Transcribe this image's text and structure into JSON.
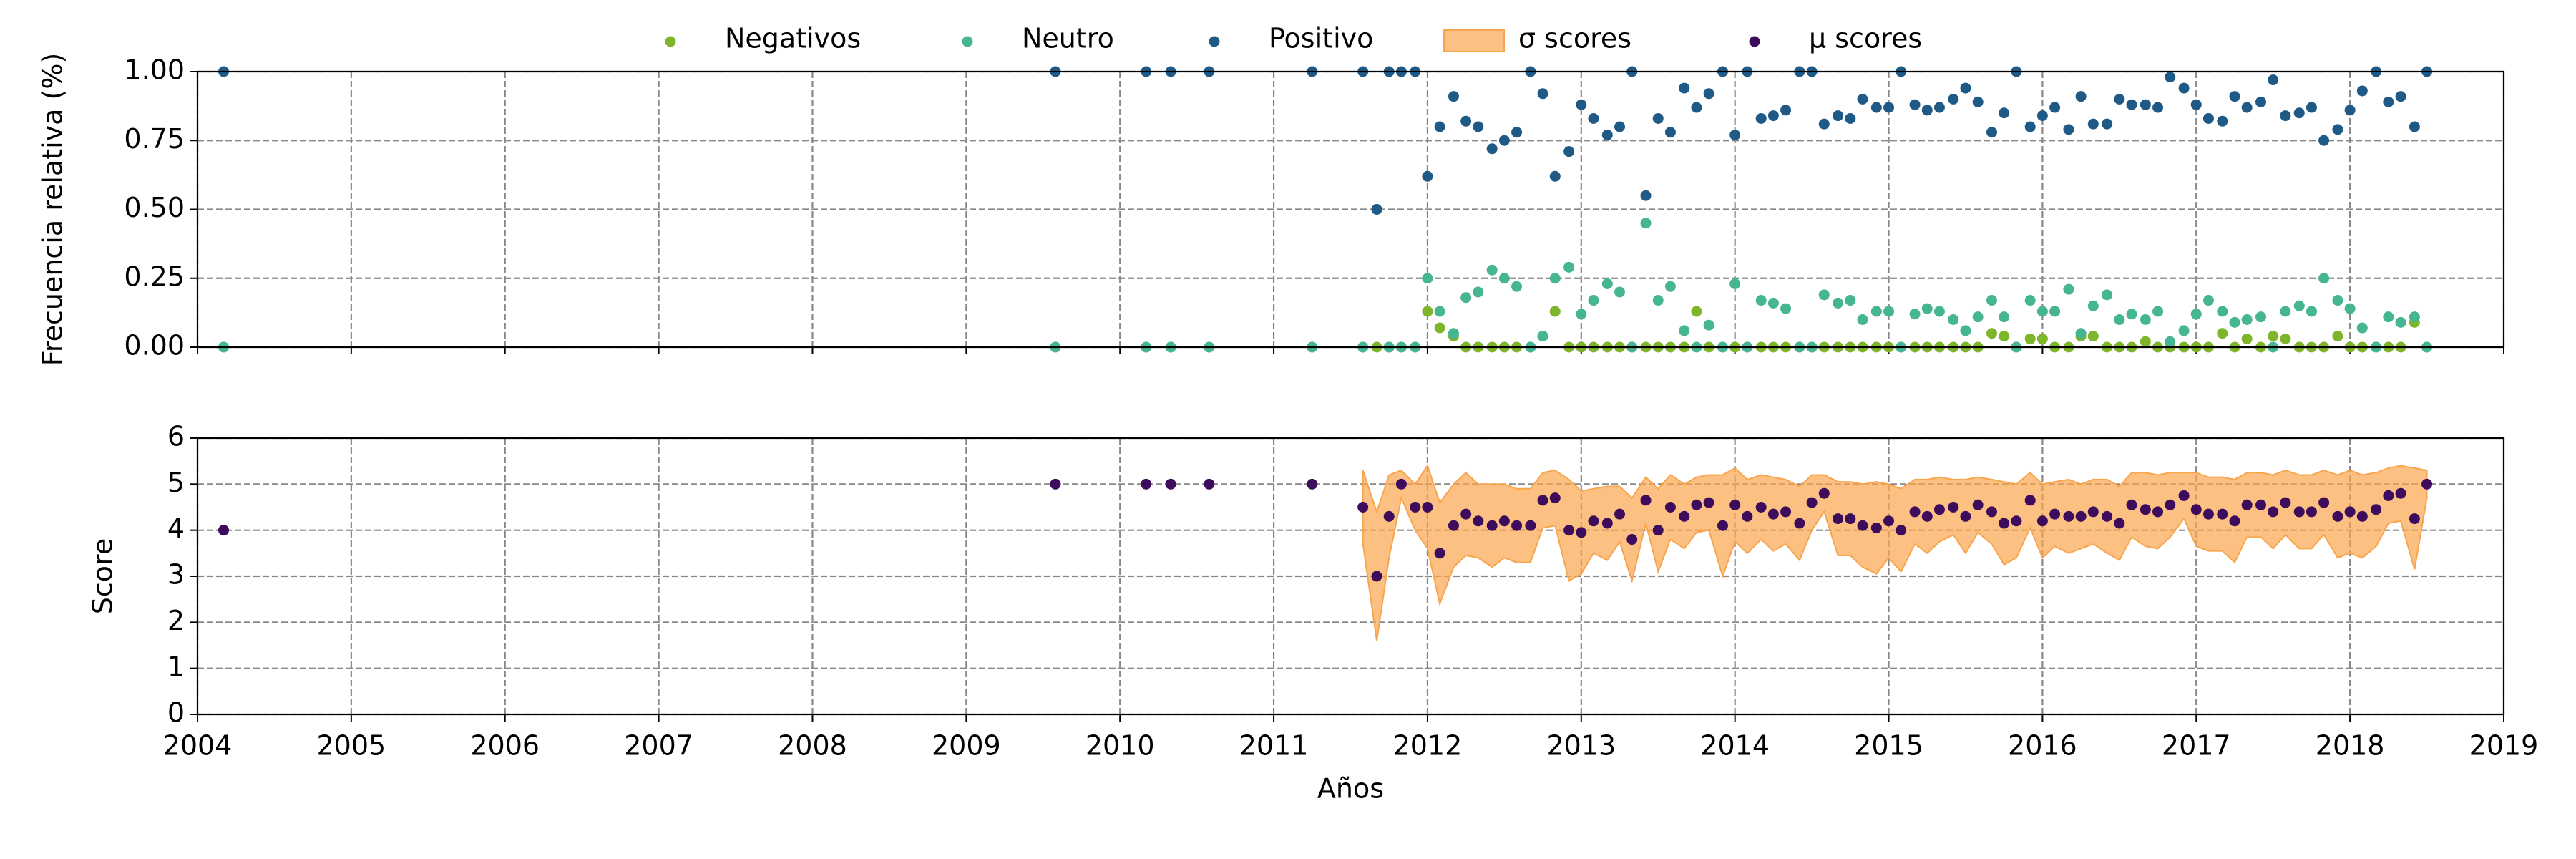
{
  "chart_data": [
    {
      "type": "scatter",
      "ylabel": "Frecuencia relativa (%)",
      "x": [
        2004.17,
        2009.58,
        2010.17,
        2010.33,
        2010.58,
        2011.25,
        2011.58,
        2011.67,
        2011.75,
        2011.83,
        2011.92,
        2012.0,
        2012.08,
        2012.17,
        2012.25,
        2012.33,
        2012.42,
        2012.5,
        2012.58,
        2012.67,
        2012.75,
        2012.83,
        2012.92,
        2013.0,
        2013.08,
        2013.17,
        2013.25,
        2013.33,
        2013.42,
        2013.5,
        2013.58,
        2013.67,
        2013.75,
        2013.83,
        2013.92,
        2014.0,
        2014.08,
        2014.17,
        2014.25,
        2014.33,
        2014.42,
        2014.5,
        2014.58,
        2014.67,
        2014.75,
        2014.83,
        2014.92,
        2015.0,
        2015.08,
        2015.17,
        2015.25,
        2015.33,
        2015.42,
        2015.5,
        2015.58,
        2015.67,
        2015.75,
        2015.83,
        2015.92,
        2016.0,
        2016.08,
        2016.17,
        2016.25,
        2016.33,
        2016.42,
        2016.5,
        2016.58,
        2016.67,
        2016.75,
        2016.83,
        2016.92,
        2017.0,
        2017.08,
        2017.17,
        2017.25,
        2017.33,
        2017.42,
        2017.5,
        2017.58,
        2017.67,
        2017.75,
        2017.83,
        2017.92,
        2018.0,
        2018.08,
        2018.17,
        2018.25,
        2018.33,
        2018.42,
        2018.5
      ],
      "series": [
        {
          "name": "Negativos",
          "color": "#7fb52a",
          "values": [
            0,
            0,
            0,
            0,
            0,
            0,
            0,
            0,
            0,
            0,
            0,
            0.13,
            0.07,
            0.04,
            0,
            0,
            0,
            0,
            0,
            0,
            0.04,
            0.13,
            0,
            0,
            0,
            0,
            0,
            0,
            0,
            0,
            0,
            0,
            0.13,
            0,
            0,
            0,
            0,
            0,
            0,
            0,
            0,
            0,
            0,
            0,
            0,
            0,
            0,
            0,
            0,
            0,
            0,
            0,
            0,
            0,
            0,
            0.05,
            0.04,
            0,
            0.03,
            0.03,
            0,
            0,
            0.04,
            0.04,
            0,
            0,
            0,
            0.02,
            0,
            0,
            0,
            0,
            0,
            0.05,
            0,
            0.03,
            0,
            0.04,
            0.03,
            0,
            0,
            0,
            0.04,
            0,
            0,
            0,
            0,
            0,
            0.09,
            0
          ]
        },
        {
          "name": "Neutro",
          "color": "#45b592",
          "values": [
            0,
            0,
            0,
            0,
            0,
            0,
            0,
            0.5,
            0,
            0,
            0,
            0.25,
            0.13,
            0.05,
            0.18,
            0.2,
            0.28,
            0.25,
            0.22,
            0,
            0.04,
            0.25,
            0.29,
            0.12,
            0.17,
            0.23,
            0.2,
            0,
            0.45,
            0.17,
            0.22,
            0.06,
            0,
            0.08,
            0,
            0.23,
            0,
            0.17,
            0.16,
            0.14,
            0,
            0,
            0.19,
            0.16,
            0.17,
            0.1,
            0.13,
            0.13,
            0,
            0.12,
            0.14,
            0.13,
            0.1,
            0.06,
            0.11,
            0.17,
            0.11,
            0,
            0.17,
            0.13,
            0.13,
            0.21,
            0.05,
            0.15,
            0.19,
            0.1,
            0.12,
            0.1,
            0.13,
            0.02,
            0.06,
            0.12,
            0.17,
            0.13,
            0.09,
            0.1,
            0.11,
            0,
            0.13,
            0.15,
            0.13,
            0.25,
            0.17,
            0.14,
            0.07,
            0,
            0.11,
            0.09,
            0.11,
            0
          ]
        },
        {
          "name": "Positivo",
          "color": "#1f5a87",
          "values": [
            1,
            1,
            1,
            1,
            1,
            1,
            1,
            0.5,
            1,
            1,
            1,
            0.62,
            0.8,
            0.91,
            0.82,
            0.8,
            0.72,
            0.75,
            0.78,
            1,
            0.92,
            0.62,
            0.71,
            0.88,
            0.83,
            0.77,
            0.8,
            1,
            0.55,
            0.83,
            0.78,
            0.94,
            0.87,
            0.92,
            1,
            0.77,
            1,
            0.83,
            0.84,
            0.86,
            1,
            1,
            0.81,
            0.84,
            0.83,
            0.9,
            0.87,
            0.87,
            1,
            0.88,
            0.86,
            0.87,
            0.9,
            0.94,
            0.89,
            0.78,
            0.85,
            1,
            0.8,
            0.84,
            0.87,
            0.79,
            0.91,
            0.81,
            0.81,
            0.9,
            0.88,
            0.88,
            0.87,
            0.98,
            0.94,
            0.88,
            0.83,
            0.82,
            0.91,
            0.87,
            0.89,
            0.97,
            0.84,
            0.85,
            0.87,
            0.75,
            0.79,
            0.86,
            0.93,
            1,
            0.89,
            0.91,
            0.8,
            1
          ]
        }
      ],
      "xlim": [
        2004,
        2019
      ],
      "xticks": [
        2004,
        2005,
        2006,
        2007,
        2008,
        2009,
        2010,
        2011,
        2012,
        2013,
        2014,
        2015,
        2016,
        2017,
        2018,
        2019
      ],
      "ylim": [
        0,
        1
      ],
      "yticks": [
        {
          "value": 0,
          "label": "0.00"
        },
        {
          "value": 0.25,
          "label": "0.25"
        },
        {
          "value": 0.5,
          "label": "0.50"
        },
        {
          "value": 0.75,
          "label": "0.75"
        },
        {
          "value": 1,
          "label": "1.00"
        }
      ],
      "grid": true,
      "legend": "upper center"
    },
    {
      "type": "scatter",
      "xlabel": "Años",
      "ylabel": "Score",
      "x": [
        2004.17,
        2009.58,
        2010.17,
        2010.33,
        2010.58,
        2011.25,
        2011.58,
        2011.67,
        2011.75,
        2011.83,
        2011.92,
        2012.0,
        2012.08,
        2012.17,
        2012.25,
        2012.33,
        2012.42,
        2012.5,
        2012.58,
        2012.67,
        2012.75,
        2012.83,
        2012.92,
        2013.0,
        2013.08,
        2013.17,
        2013.25,
        2013.33,
        2013.42,
        2013.5,
        2013.58,
        2013.67,
        2013.75,
        2013.83,
        2013.92,
        2014.0,
        2014.08,
        2014.17,
        2014.25,
        2014.33,
        2014.42,
        2014.5,
        2014.58,
        2014.67,
        2014.75,
        2014.83,
        2014.92,
        2015.0,
        2015.08,
        2015.17,
        2015.25,
        2015.33,
        2015.42,
        2015.5,
        2015.58,
        2015.67,
        2015.75,
        2015.83,
        2015.92,
        2016.0,
        2016.08,
        2016.17,
        2016.25,
        2016.33,
        2016.42,
        2016.5,
        2016.58,
        2016.67,
        2016.75,
        2016.83,
        2016.92,
        2017.0,
        2017.08,
        2017.17,
        2017.25,
        2017.33,
        2017.42,
        2017.5,
        2017.58,
        2017.67,
        2017.75,
        2017.83,
        2017.92,
        2018.0,
        2018.08,
        2018.17,
        2018.25,
        2018.33,
        2018.42,
        2018.5
      ],
      "series": [
        {
          "name": "σ scores",
          "color": "#f9a54d",
          "style": "band",
          "values": [
            null,
            null,
            null,
            null,
            null,
            null,
            0.8,
            1.4,
            0.9,
            0.3,
            0.5,
            0.9,
            1.1,
            0.9,
            0.9,
            0.8,
            0.9,
            0.8,
            0.8,
            0.8,
            0.6,
            0.6,
            1.1,
            0.9,
            0.7,
            0.8,
            0.6,
            0.9,
            0.5,
            0.9,
            0.7,
            0.7,
            0.6,
            0.6,
            1.1,
            0.8,
            0.8,
            0.7,
            0.8,
            0.7,
            0.8,
            0.6,
            0.4,
            0.8,
            0.8,
            0.9,
            1.0,
            0.8,
            0.9,
            0.7,
            0.8,
            0.7,
            0.6,
            0.8,
            0.6,
            0.7,
            0.9,
            0.8,
            0.6,
            0.8,
            0.7,
            0.8,
            0.7,
            0.7,
            0.8,
            0.8,
            0.7,
            0.8,
            0.8,
            0.7,
            0.5,
            0.8,
            0.8,
            0.8,
            0.9,
            0.7,
            0.7,
            0.8,
            0.7,
            0.8,
            0.8,
            0.7,
            0.9,
            0.9,
            0.9,
            0.8,
            0.6,
            0.6,
            1.1,
            0.3
          ]
        },
        {
          "name": "μ scores",
          "color": "#3d0c5c",
          "values": [
            4,
            5,
            5,
            5,
            5,
            5,
            4.5,
            3.0,
            4.3,
            5.0,
            4.5,
            4.5,
            3.5,
            4.1,
            4.35,
            4.2,
            4.1,
            4.2,
            4.1,
            4.1,
            4.65,
            4.7,
            4.0,
            3.95,
            4.2,
            4.15,
            4.35,
            3.8,
            4.65,
            4.0,
            4.5,
            4.3,
            4.55,
            4.6,
            4.1,
            4.55,
            4.3,
            4.5,
            4.35,
            4.4,
            4.15,
            4.6,
            4.8,
            4.25,
            4.25,
            4.1,
            4.05,
            4.2,
            4.0,
            4.4,
            4.3,
            4.45,
            4.5,
            4.3,
            4.55,
            4.4,
            4.15,
            4.2,
            4.65,
            4.2,
            4.35,
            4.3,
            4.3,
            4.4,
            4.3,
            4.15,
            4.55,
            4.45,
            4.4,
            4.55,
            4.75,
            4.45,
            4.35,
            4.35,
            4.2,
            4.55,
            4.55,
            4.4,
            4.6,
            4.4,
            4.4,
            4.6,
            4.3,
            4.4,
            4.3,
            4.45,
            4.75,
            4.8,
            4.25,
            5.0
          ]
        }
      ],
      "xlim": [
        2004,
        2019
      ],
      "xticks": [
        2004,
        2005,
        2006,
        2007,
        2008,
        2009,
        2010,
        2011,
        2012,
        2013,
        2014,
        2015,
        2016,
        2017,
        2018,
        2019
      ],
      "ylim": [
        0,
        6
      ],
      "yticks": [
        0,
        1,
        2,
        3,
        4,
        5,
        6
      ],
      "grid": true
    }
  ]
}
